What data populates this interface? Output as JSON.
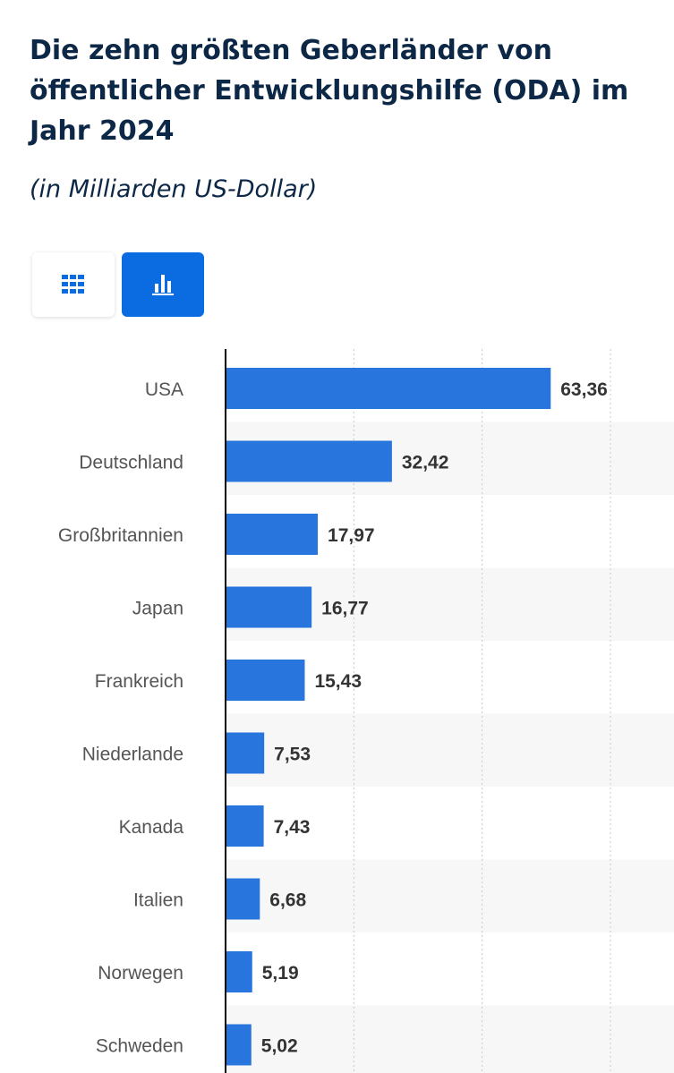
{
  "title": "Die zehn größten Geberländer von öffentlicher Entwicklungshilfe (ODA) im Jahr 2024",
  "subtitle": "(in Milliarden US-Dollar)",
  "view_toggle": {
    "table_icon": "grid-table-icon",
    "chart_icon": "bar-chart-icon",
    "active": "chart",
    "active_color": "#0a6ce0",
    "icon_color_inactive": "#0a6ce0",
    "icon_color_active": "#ffffff"
  },
  "chart_data": {
    "type": "bar",
    "orientation": "horizontal",
    "categories": [
      "USA",
      "Deutschland",
      "Großbritannien",
      "Japan",
      "Frankreich",
      "Niederlande",
      "Kanada",
      "Italien",
      "Norwegen",
      "Schweden"
    ],
    "values": [
      63.36,
      32.42,
      17.97,
      16.77,
      15.43,
      7.53,
      7.43,
      6.68,
      5.19,
      5.02
    ],
    "value_labels": [
      "63,36",
      "32,42",
      "17,97",
      "16,77",
      "15,43",
      "7,53",
      "7,43",
      "6,68",
      "5,19",
      "5,02"
    ],
    "xlim": [
      0,
      75
    ],
    "grid": true,
    "bar_color": "#2876dd",
    "stripe_color": "#f7f7f7"
  }
}
